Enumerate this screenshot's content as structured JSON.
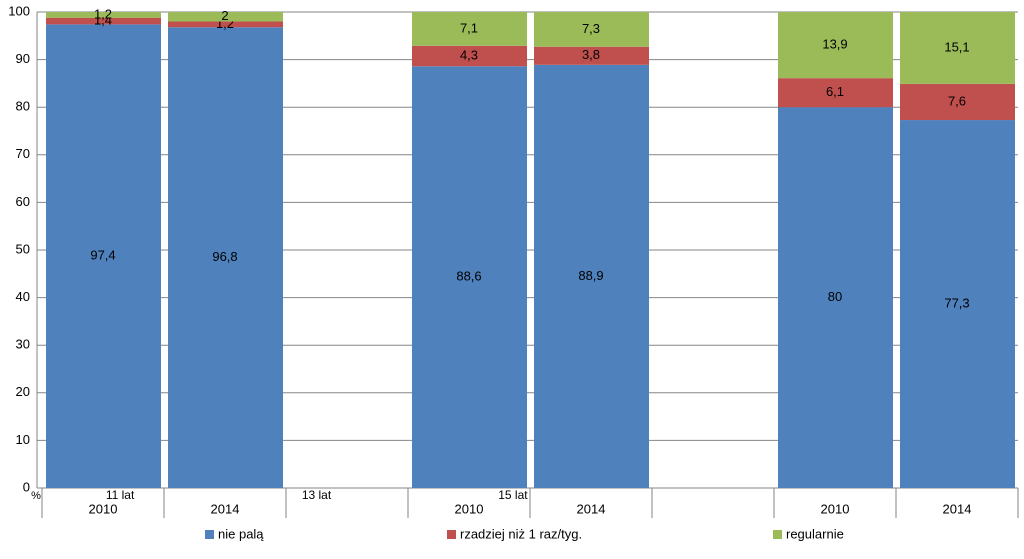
{
  "chart_data": {
    "type": "stacked_bar",
    "y_label": "%",
    "categories": [
      "2010",
      "2014",
      null,
      "2010",
      "2014",
      null,
      "2010",
      "2014"
    ],
    "group_labels": [
      "11 lat",
      "13 lat",
      "15 lat"
    ],
    "series": [
      {
        "name": "nie palą",
        "color": "#4f81bd",
        "values": [
          97.4,
          96.8,
          null,
          88.6,
          88.9,
          null,
          80,
          77.3
        ],
        "value_labels": [
          "97,4",
          "96,8",
          null,
          "88,6",
          "88,9",
          null,
          "80",
          "77,3"
        ]
      },
      {
        "name": "rzadziej niż 1 raz/tyg.",
        "color": "#c0504d",
        "values": [
          1.4,
          1.2,
          null,
          4.3,
          3.8,
          null,
          6.1,
          7.6
        ],
        "value_labels": [
          "1,4",
          "1,2",
          null,
          "4,3",
          "3,8",
          null,
          "6,1",
          "7,6"
        ]
      },
      {
        "name": "regularnie",
        "color": "#9bbb59",
        "values": [
          1.2,
          2,
          null,
          7.1,
          7.3,
          null,
          13.9,
          15.1
        ],
        "value_labels": [
          "1,2",
          "2",
          null,
          "7,1",
          "7,3",
          null,
          "13,9",
          "15,1"
        ]
      }
    ],
    "ylim": [
      0,
      100
    ],
    "yticks": [
      0,
      10,
      20,
      30,
      40,
      50,
      60,
      70,
      80,
      90,
      100
    ],
    "grid": true
  }
}
